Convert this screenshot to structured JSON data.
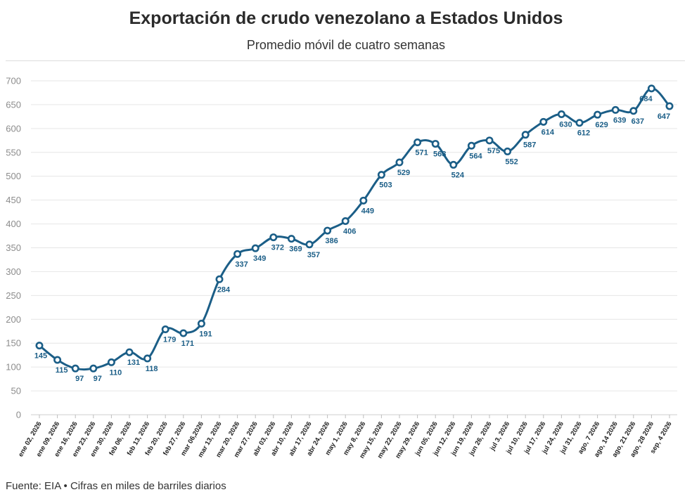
{
  "header": {
    "title": "Exportación de crudo venezolano a Estados Unidos",
    "subtitle": "Promedio móvil de cuatro semanas"
  },
  "footer": {
    "source": "Fuente: EIA • Cifras en miles de barriles diarios"
  },
  "colors": {
    "line": "#1b5e87",
    "label": "#1b5e87",
    "grid": "#e6e6e6"
  },
  "chart_data": {
    "type": "line",
    "title": "Exportación de crudo venezolano a Estados Unidos",
    "subtitle": "Promedio móvil de cuatro semanas",
    "xlabel": "",
    "ylabel": "",
    "ylim": [
      0,
      700
    ],
    "yticks": [
      0,
      50,
      100,
      150,
      200,
      250,
      300,
      350,
      400,
      450,
      500,
      550,
      600,
      650,
      700
    ],
    "grid": true,
    "legend": "none",
    "categories": [
      "ene 02, 2026",
      "ene 09, 2026",
      "ene 16, 2026",
      "ene 23, 2026",
      "ene 30, 2026",
      "feb 06, 2026",
      "feb 13, 2026",
      "feb 20, 2026",
      "feb 27, 2026",
      "mar 06,2026",
      "mar 13, 2026",
      "mar 20, 2026",
      "mar 27, 2026",
      "abr 03, 2026",
      "abr 10, 2026",
      "abr 17, 2026",
      "abr 24, 2026",
      "may 1, 2026",
      "may 8, 2026",
      "may 15, 2026",
      "may 22, 2026",
      "may 29, 2026",
      "jun 05, 2026",
      "jun 12, 2026",
      "jun 19, 2026",
      "jun 26, 2026",
      "jul 3, 2026",
      "jul 10, 2026",
      "jul 17, 2026",
      "jul 24, 2026",
      "jul 31, 2026",
      "ago, 7 2026",
      "ago, 14 2026",
      "ago, 21 2026",
      "ago, 28 2026",
      "sep, 4 2026"
    ],
    "series": [
      {
        "values": [
          145,
          115,
          97,
          97,
          110,
          131,
          118,
          179,
          171,
          191,
          284,
          337,
          349,
          372,
          369,
          357,
          386,
          406,
          449,
          503,
          529,
          571,
          568,
          524,
          564,
          575,
          552,
          587,
          614,
          630,
          612,
          629,
          639,
          637,
          684,
          647
        ],
        "data_labels": [
          "145",
          "115",
          "97",
          "97",
          "110",
          "131",
          "118",
          "179",
          "171",
          "191",
          "284",
          "337",
          "349",
          "372",
          "369",
          "357",
          "386",
          "406",
          "449",
          "503",
          "529",
          "571",
          "568",
          "524",
          "564",
          "575",
          "552",
          "587",
          "614",
          "630",
          "612",
          "629",
          "639",
          "637",
          "684",
          "647"
        ]
      }
    ]
  }
}
